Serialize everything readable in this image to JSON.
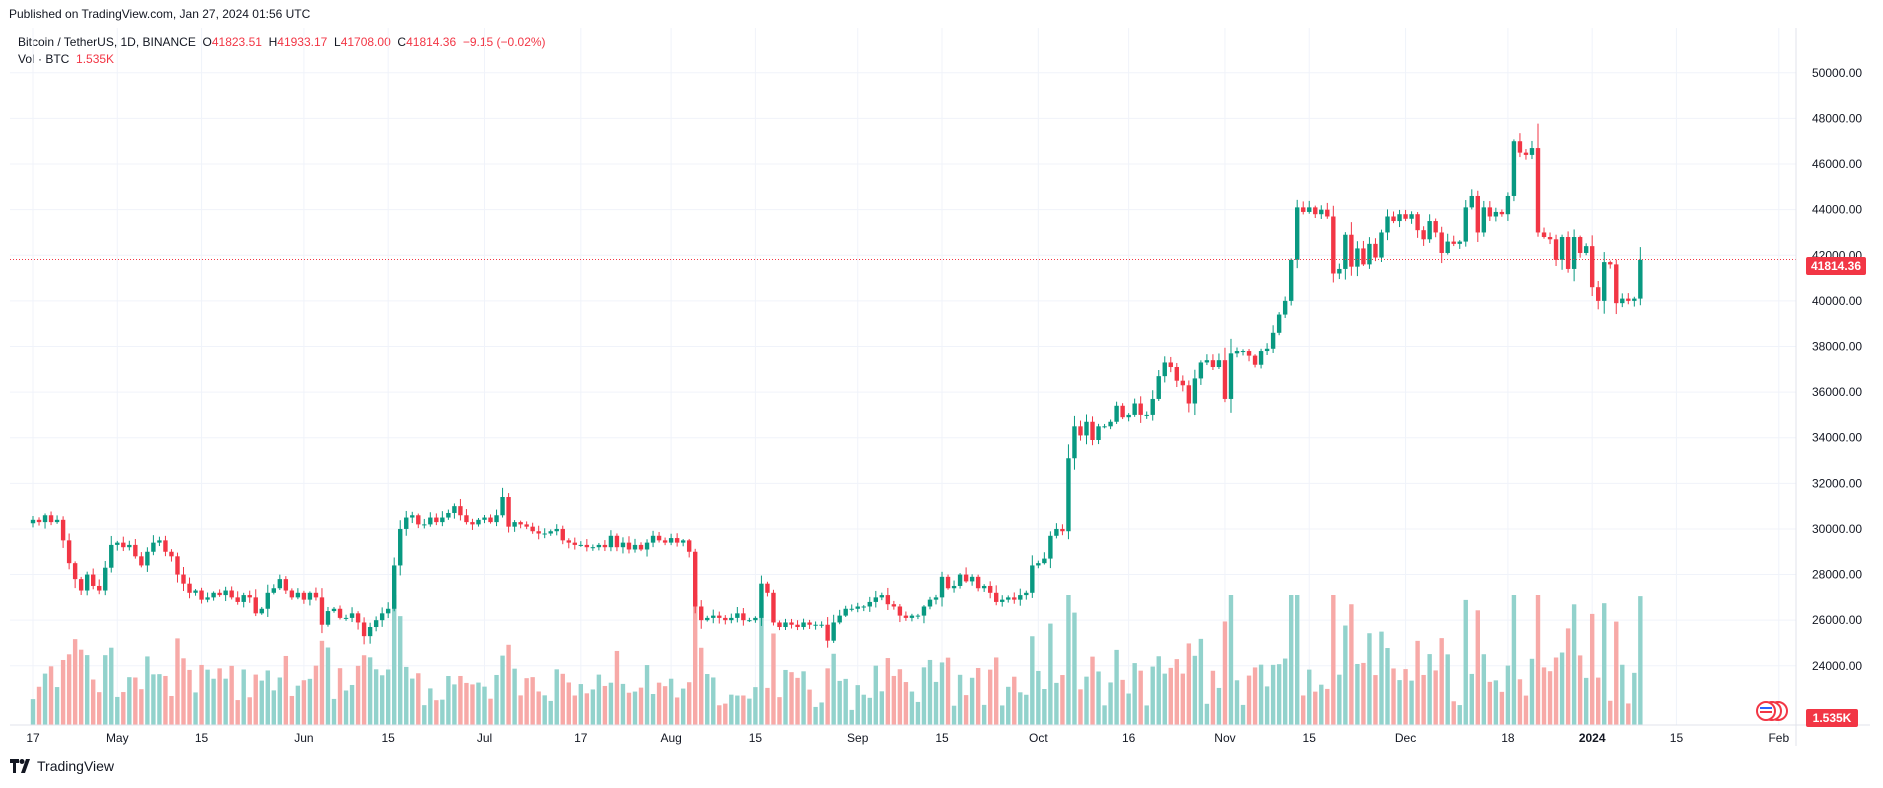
{
  "header": {
    "published": "Published on TradingView.com, Jan 27, 2024 01:56 UTC"
  },
  "legend": {
    "symbol": "Bitcoin / TetherUS, 1D, BINANCE",
    "o_label": "O",
    "o_value": "41823.51",
    "h_label": "H",
    "h_value": "41933.17",
    "l_label": "L",
    "l_value": "41708.00",
    "c_label": "C",
    "c_value": "41814.36",
    "change": "−9.15 (−0.02%)",
    "vol_label": "Vol · BTC",
    "vol_value": "1.535K"
  },
  "price_badge": "41814.36",
  "volume_badge": "1.535K",
  "footer": {
    "brand": "TradingView"
  },
  "colors": {
    "up": "#089981",
    "down": "#f23645",
    "vol_up": "#92d2cc",
    "vol_down": "#f7a9a7",
    "grid": "#f0f3fa",
    "price_line": "#f23645"
  },
  "chart_data": {
    "type": "candlestick",
    "ylim": [
      22500,
      51000
    ],
    "y_ticks": [
      "50000.00",
      "48000.00",
      "46000.00",
      "44000.00",
      "42000.00",
      "40000.00",
      "38000.00",
      "36000.00",
      "34000.00",
      "32000.00",
      "30000.00",
      "28000.00",
      "26000.00",
      "24000.00"
    ],
    "x_ticks": [
      {
        "label": "17",
        "day": 0
      },
      {
        "label": "May",
        "day": 14
      },
      {
        "label": "15",
        "day": 28
      },
      {
        "label": "Jun",
        "day": 45
      },
      {
        "label": "15",
        "day": 59
      },
      {
        "label": "Jul",
        "day": 75
      },
      {
        "label": "17",
        "day": 91
      },
      {
        "label": "Aug",
        "day": 106
      },
      {
        "label": "15",
        "day": 120
      },
      {
        "label": "Sep",
        "day": 137
      },
      {
        "label": "15",
        "day": 151
      },
      {
        "label": "Oct",
        "day": 167
      },
      {
        "label": "16",
        "day": 182
      },
      {
        "label": "Nov",
        "day": 198
      },
      {
        "label": "15",
        "day": 212
      },
      {
        "label": "Dec",
        "day": 228
      },
      {
        "label": "18",
        "day": 245
      },
      {
        "label": "2024",
        "day": 259,
        "bold": true
      },
      {
        "label": "15",
        "day": 273
      },
      {
        "label": "Feb",
        "day": 290
      }
    ],
    "last_price": 41814.36,
    "closes": [
      30400,
      30300,
      30600,
      30300,
      30400,
      29500,
      28500,
      27800,
      27300,
      28000,
      27500,
      27300,
      28300,
      29300,
      29400,
      29200,
      29300,
      28800,
      28400,
      29000,
      29400,
      29500,
      29000,
      28800,
      28000,
      27600,
      27200,
      27300,
      26900,
      27000,
      27200,
      27100,
      27300,
      27000,
      26800,
      27100,
      27000,
      26300,
      26500,
      27200,
      27400,
      27800,
      27300,
      27000,
      27200,
      26900,
      27200,
      27000,
      25800,
      26400,
      26500,
      26100,
      26100,
      26300,
      25900,
      25300,
      25700,
      26000,
      26300,
      26500,
      28400,
      30000,
      30500,
      30600,
      30200,
      30200,
      30500,
      30300,
      30500,
      30700,
      31000,
      30600,
      30300,
      30200,
      30400,
      30500,
      30300,
      30600,
      31400,
      30100,
      30300,
      30200,
      30100,
      29900,
      29800,
      29800,
      29900,
      30000,
      29500,
      29400,
      29300,
      29300,
      29200,
      29200,
      29300,
      29200,
      29700,
      29200,
      29400,
      29100,
      29300,
      29100,
      29400,
      29700,
      29500,
      29400,
      29600,
      29400,
      29500,
      29000,
      26600,
      26000,
      26100,
      26200,
      26100,
      26000,
      26100,
      26300,
      26000,
      26000,
      26100,
      27600,
      27200,
      25900,
      25700,
      25900,
      25800,
      25700,
      25900,
      25800,
      25800,
      25800,
      25100,
      25900,
      26200,
      26500,
      26500,
      26600,
      26600,
      26800,
      27000,
      27100,
      26700,
      26600,
      26200,
      26100,
      26200,
      26200,
      26600,
      26900,
      27000,
      27900,
      27400,
      27500,
      28000,
      27700,
      27900,
      27400,
      27500,
      27200,
      26800,
      26900,
      27000,
      26900,
      27100,
      27200,
      28400,
      28500,
      28700,
      29700,
      30000,
      29900,
      33100,
      34500,
      34100,
      34700,
      33900,
      34500,
      34500,
      34700,
      35400,
      34900,
      35000,
      35500,
      35000,
      35000,
      35700,
      36700,
      37300,
      37100,
      36500,
      36300,
      35500,
      36600,
      37300,
      37400,
      37100,
      37400,
      35700,
      37700,
      37800,
      37800,
      37600,
      37200,
      37800,
      37900,
      38600,
      39400,
      40000,
      41800,
      44100,
      43900,
      44100,
      43800,
      44000,
      43700,
      41200,
      41400,
      42900,
      41500,
      42300,
      41600,
      42500,
      41900,
      43000,
      43700,
      43500,
      43800,
      43600,
      43800,
      43100,
      42700,
      43500,
      43000,
      42100,
      42600,
      42500,
      42600,
      44100,
      44600,
      43000,
      44100,
      43700,
      43900,
      43800,
      44600,
      47000,
      46500,
      46400,
      46700,
      43000,
      42800,
      42700,
      41800,
      42800,
      41400,
      42800,
      42100,
      42400,
      40600,
      40000,
      41700,
      41600,
      39900,
      40100,
      40000,
      40100,
      41800
    ]
  }
}
